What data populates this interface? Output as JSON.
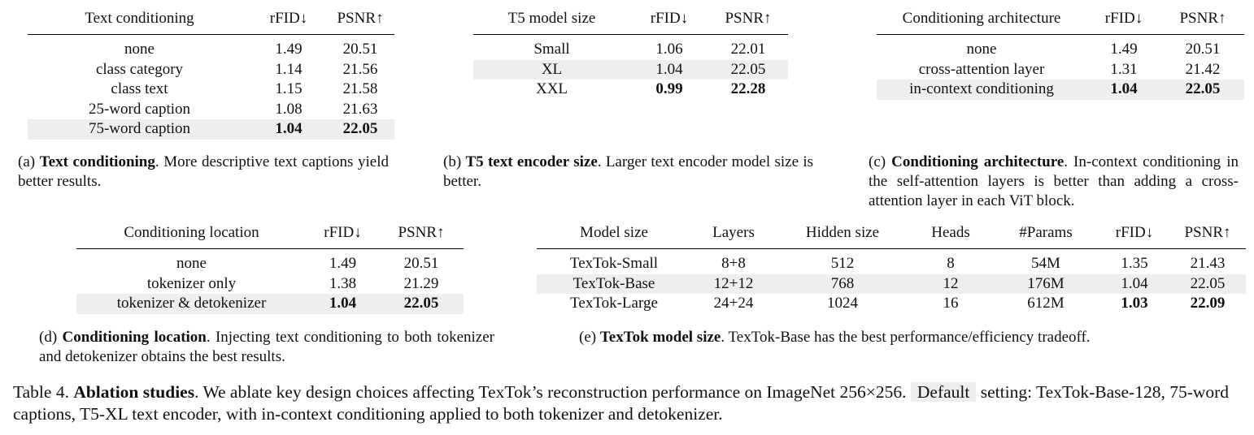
{
  "tables": {
    "a": {
      "headers": [
        "Text conditioning",
        "rFID↓",
        "PSNR↑"
      ],
      "rows": [
        {
          "label": "none",
          "rfid": "1.49",
          "psnr": "20.51"
        },
        {
          "label": "class category",
          "rfid": "1.14",
          "psnr": "21.56"
        },
        {
          "label": "class text",
          "rfid": "1.15",
          "psnr": "21.58"
        },
        {
          "label": "25-word caption",
          "rfid": "1.08",
          "psnr": "21.63"
        },
        {
          "label": "75-word caption",
          "rfid": "1.04",
          "psnr": "22.05"
        }
      ],
      "caption_prefix": "(a) ",
      "caption_bold": "Text conditioning",
      "caption_rest": ". More descriptive text captions yield better results."
    },
    "b": {
      "headers": [
        "T5 model size",
        "rFID↓",
        "PSNR↑"
      ],
      "rows": [
        {
          "label": "Small",
          "rfid": "1.06",
          "psnr": "22.01"
        },
        {
          "label": "XL",
          "rfid": "1.04",
          "psnr": "22.05"
        },
        {
          "label": "XXL",
          "rfid": "0.99",
          "psnr": "22.28"
        }
      ],
      "caption_prefix": "(b) ",
      "caption_bold": "T5 text encoder size",
      "caption_rest": ". Larger text encoder model size is better."
    },
    "c": {
      "headers": [
        "Conditioning architecture",
        "rFID↓",
        "PSNR↑"
      ],
      "rows": [
        {
          "label": "none",
          "rfid": "1.49",
          "psnr": "20.51"
        },
        {
          "label": "cross-attention layer",
          "rfid": "1.31",
          "psnr": "21.42"
        },
        {
          "label": "in-context conditioning",
          "rfid": "1.04",
          "psnr": "22.05"
        }
      ],
      "caption_prefix": "(c) ",
      "caption_bold": "Conditioning architecture",
      "caption_rest": ". In-context conditioning in the self-attention layers is better than adding a cross-attention layer in each ViT block."
    },
    "d": {
      "headers": [
        "Conditioning location",
        "rFID↓",
        "PSNR↑"
      ],
      "rows": [
        {
          "label": "none",
          "rfid": "1.49",
          "psnr": "20.51"
        },
        {
          "label": "tokenizer only",
          "rfid": "1.38",
          "psnr": "21.29"
        },
        {
          "label": "tokenizer & detokenizer",
          "rfid": "1.04",
          "psnr": "22.05"
        }
      ],
      "caption_prefix": "(d) ",
      "caption_bold": "Conditioning location",
      "caption_rest": ". Injecting text conditioning to both tokenizer and detokenizer obtains the best results."
    },
    "e": {
      "headers": [
        "Model size",
        "Layers",
        "Hidden size",
        "Heads",
        "#Params",
        "rFID↓",
        "PSNR↑"
      ],
      "rows": [
        {
          "model": "TexTok-Small",
          "layers": "8+8",
          "hidden": "512",
          "heads": "8",
          "params": "54M",
          "rfid": "1.35",
          "psnr": "21.43"
        },
        {
          "model": "TexTok-Base",
          "layers": "12+12",
          "hidden": "768",
          "heads": "12",
          "params": "176M",
          "rfid": "1.04",
          "psnr": "22.05"
        },
        {
          "model": "TexTok-Large",
          "layers": "24+24",
          "hidden": "1024",
          "heads": "16",
          "params": "612M",
          "rfid": "1.03",
          "psnr": "22.09"
        }
      ],
      "caption_prefix": "(e) ",
      "caption_bold": "TexTok model size",
      "caption_rest": ". TexTok-Base has the best performance/efficiency tradeoff."
    }
  },
  "main_caption": {
    "label": "Table 4. ",
    "bold": "Ablation studies",
    "text1": ". We ablate key design choices affecting TexTok’s reconstruction performance on ImageNet 256×256. ",
    "default": "Default",
    "text2": " setting: TexTok-Base-128, 75-word captions, T5-XL text encoder, with in-context conditioning applied to both tokenizer and detokenizer."
  }
}
